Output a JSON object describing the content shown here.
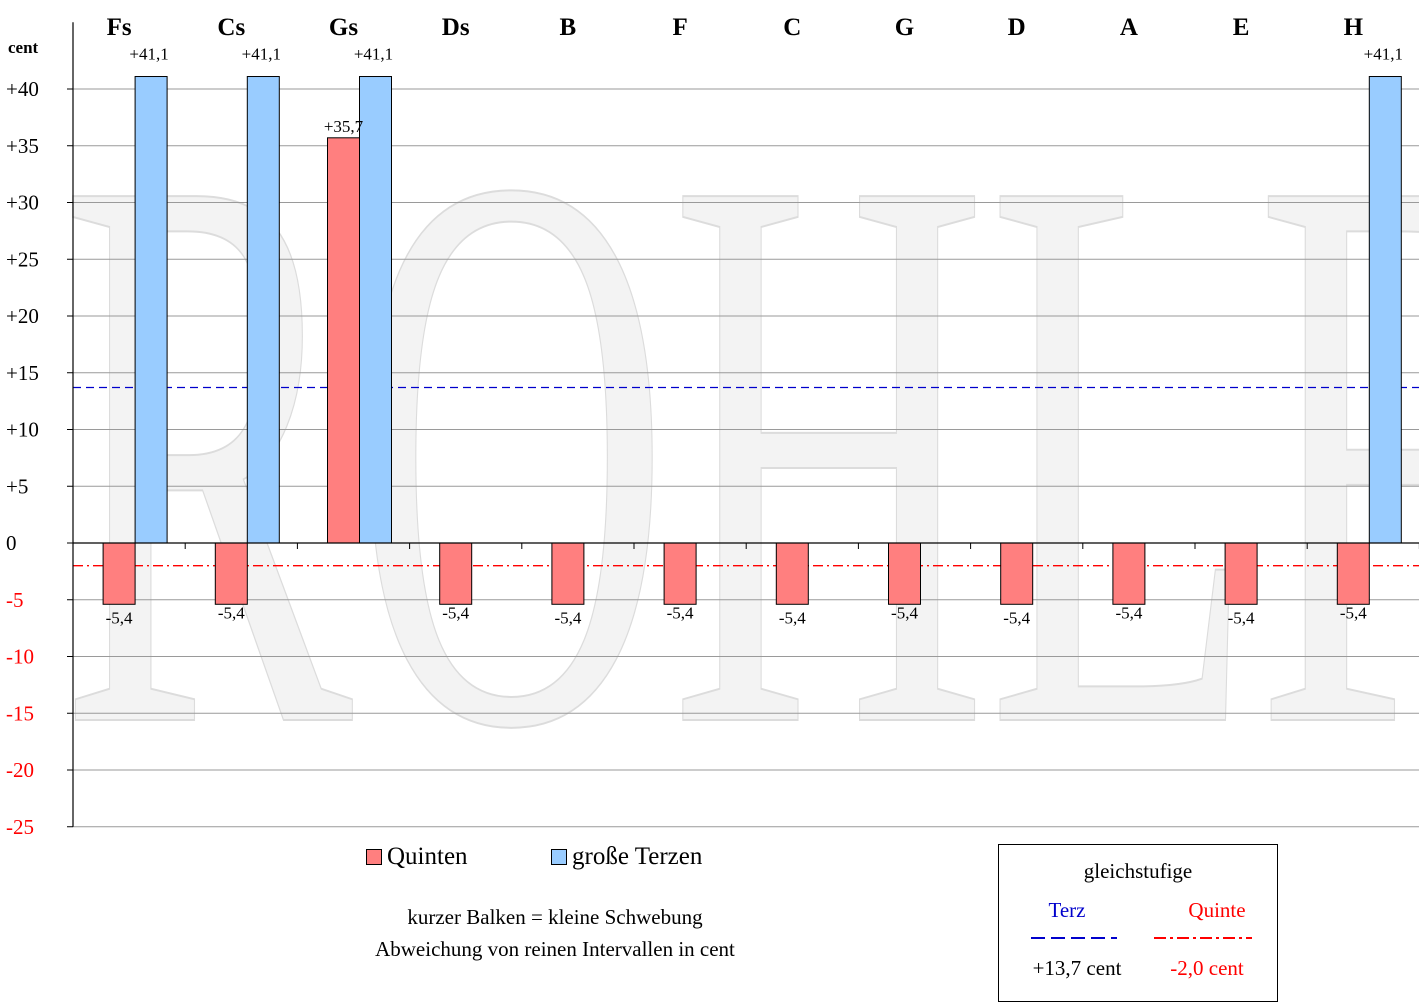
{
  "chart_data": {
    "type": "bar",
    "categories": [
      "Fs",
      "Cs",
      "Gs",
      "Ds",
      "B",
      "F",
      "C",
      "G",
      "D",
      "A",
      "E",
      "H"
    ],
    "series": [
      {
        "name": "Quinten",
        "color": "#ff7f7f",
        "values": [
          -5.4,
          -5.4,
          35.7,
          -5.4,
          -5.4,
          -5.4,
          -5.4,
          -5.4,
          -5.4,
          -5.4,
          -5.4,
          -5.4
        ]
      },
      {
        "name": "große Terzen",
        "color": "#99ccff",
        "values": [
          41.1,
          41.1,
          41.1,
          null,
          null,
          null,
          null,
          null,
          null,
          null,
          null,
          41.1
        ]
      }
    ],
    "data_labels": {
      "quinten": [
        "-5,4",
        "-5,4",
        "+35,7",
        "-5,4",
        "-5,4",
        "-5,4",
        "-5,4",
        "-5,4",
        "-5,4",
        "-5,4",
        "-5,4",
        "-5,4"
      ],
      "terzen": [
        "+41,1",
        "+41,1",
        "+41,1",
        "",
        "",
        "",
        "",
        "",
        "",
        "",
        "",
        "+41,1"
      ]
    },
    "ylabel": "cent",
    "ylim": [
      -25,
      45
    ],
    "ticks": [
      40,
      35,
      30,
      25,
      20,
      15,
      10,
      5,
      0,
      -5,
      -10,
      -15,
      -20,
      -25
    ],
    "tick_labels": [
      "+40",
      "+35",
      "+30",
      "+25",
      "+20",
      "+15",
      "+10",
      "+5",
      "0",
      "-5",
      "-10",
      "-15",
      "-20",
      "-25"
    ],
    "negative_tick_color": "#ff0000",
    "grid": true,
    "reference_lines": [
      {
        "name": "Terz",
        "value": 13.7,
        "color": "#0000cc",
        "style": "dashed"
      },
      {
        "name": "Quinte",
        "value": -2.0,
        "color": "#ff0000",
        "style": "dash-dot"
      }
    ],
    "watermark": "ROHLF"
  },
  "legend": {
    "quinten": "Quinten",
    "terzen": "große Terzen"
  },
  "notes": {
    "line1": "kurzer Balken = kleine Schwebung",
    "line2": "Abweichung von reinen Intervallen in cent"
  },
  "reference_box": {
    "title": "gleichstufige",
    "terz_label": "Terz",
    "terz_value": "+13,7 cent",
    "quinte_label": "Quinte",
    "quinte_value": "-2,0 cent"
  }
}
